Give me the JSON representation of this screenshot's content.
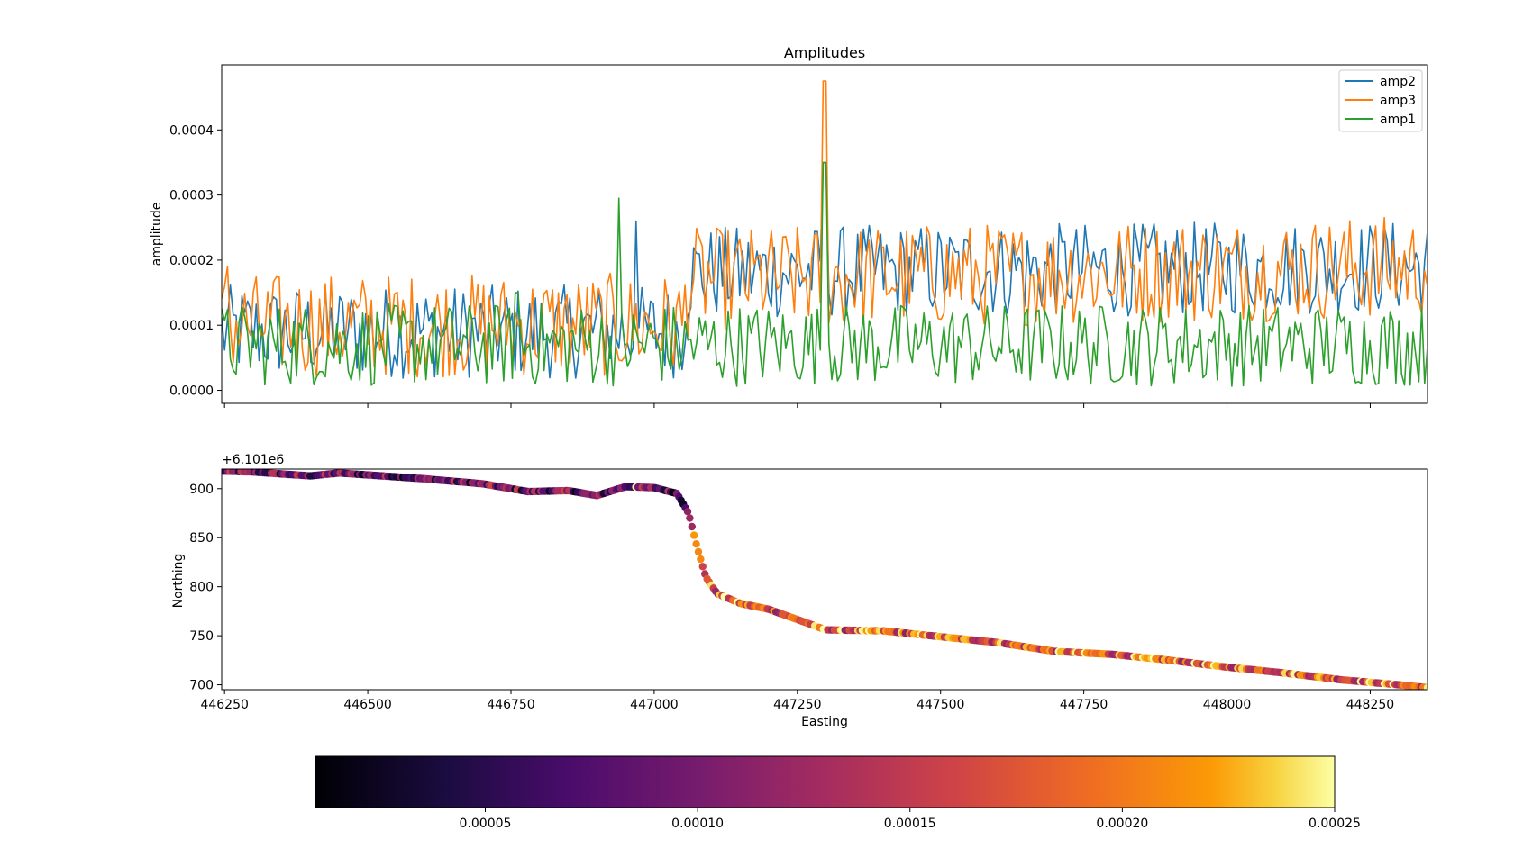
{
  "chart_data": [
    {
      "type": "line",
      "title": "Amplitudes",
      "xlabel": "",
      "ylabel": "amplitude",
      "xlim": [
        446245,
        448350
      ],
      "ylim": [
        -2e-05,
        0.0005
      ],
      "yticks": [
        0.0,
        0.0001,
        0.0002,
        0.0003,
        0.0004
      ],
      "ytick_labels": [
        "0.0000",
        "0.0001",
        "0.0002",
        "0.0003",
        "0.0004"
      ],
      "xticks": [
        446250,
        446500,
        446750,
        447000,
        447250,
        447500,
        447750,
        448000,
        448250
      ],
      "xtick_labels_visible": false,
      "legend": {
        "position": "top-right",
        "entries": [
          "amp2",
          "amp3",
          "amp1"
        ]
      },
      "x_range": [
        446245,
        448350
      ],
      "n_points": 420,
      "series": [
        {
          "name": "amp2",
          "color": "#1f77b4",
          "segments": [
            [
              446245,
              9e-05
            ],
            [
              447050,
              9e-05
            ],
            [
              447060,
              0.00018
            ],
            [
              448350,
              0.00019
            ]
          ],
          "noise": 4.5e-05,
          "peaks": [
            [
              446970,
              0.00026
            ],
            [
              447298,
              0.00035
            ]
          ]
        },
        {
          "name": "amp3",
          "color": "#ff7f0e",
          "segments": [
            [
              446245,
              0.0001
            ],
            [
              447050,
              0.0001
            ],
            [
              447060,
              0.00017
            ],
            [
              448350,
              0.00019
            ]
          ],
          "noise": 5e-05,
          "peaks": [
            [
              447298,
              0.000475
            ],
            [
              446255,
              0.00019
            ]
          ]
        },
        {
          "name": "amp1",
          "color": "#2ca02c",
          "segments": [
            [
              446245,
              7e-05
            ],
            [
              448350,
              7e-05
            ]
          ],
          "noise": 4e-05,
          "peaks": [
            [
              446940,
              0.000295
            ],
            [
              447298,
              0.00035
            ],
            [
              446760,
              0.00015
            ]
          ]
        }
      ]
    },
    {
      "type": "scatter",
      "title": "",
      "xlabel": "Easting",
      "ylabel": "Northing",
      "offset_text": "+6.101e6",
      "xlim": [
        446245,
        448350
      ],
      "ylim": [
        695,
        920
      ],
      "xticks": [
        446250,
        446500,
        446750,
        447000,
        447250,
        447500,
        447750,
        448000,
        448250
      ],
      "yticks": [
        700,
        750,
        800,
        850,
        900
      ],
      "track": [
        [
          446245,
          918
        ],
        [
          446300,
          917
        ],
        [
          446400,
          913
        ],
        [
          446450,
          916
        ],
        [
          446500,
          914
        ],
        [
          446600,
          910
        ],
        [
          446700,
          905
        ],
        [
          446780,
          897
        ],
        [
          446850,
          898
        ],
        [
          446900,
          893
        ],
        [
          446950,
          902
        ],
        [
          447000,
          901
        ],
        [
          447040,
          895
        ],
        [
          447060,
          875
        ],
        [
          447075,
          840
        ],
        [
          447090,
          810
        ],
        [
          447110,
          793
        ],
        [
          447150,
          783
        ],
        [
          447200,
          777
        ],
        [
          447300,
          756
        ],
        [
          447400,
          755
        ],
        [
          447500,
          749
        ],
        [
          447600,
          743
        ],
        [
          447700,
          734
        ],
        [
          447800,
          731
        ],
        [
          447900,
          725
        ],
        [
          448000,
          718
        ],
        [
          448100,
          712
        ],
        [
          448200,
          705
        ],
        [
          448300,
          700
        ],
        [
          448350,
          697
        ]
      ],
      "color_mapping": "amplitude",
      "colormap": "inferno",
      "colorbar": {
        "orientation": "horizontal",
        "vmin": 1e-05,
        "vmax": 0.00025,
        "ticks": [
          5e-05,
          0.0001,
          0.00015,
          0.0002,
          0.00025
        ],
        "tick_labels": [
          "0.00005",
          "0.00010",
          "0.00015",
          "0.00020",
          "0.00025"
        ]
      }
    }
  ]
}
